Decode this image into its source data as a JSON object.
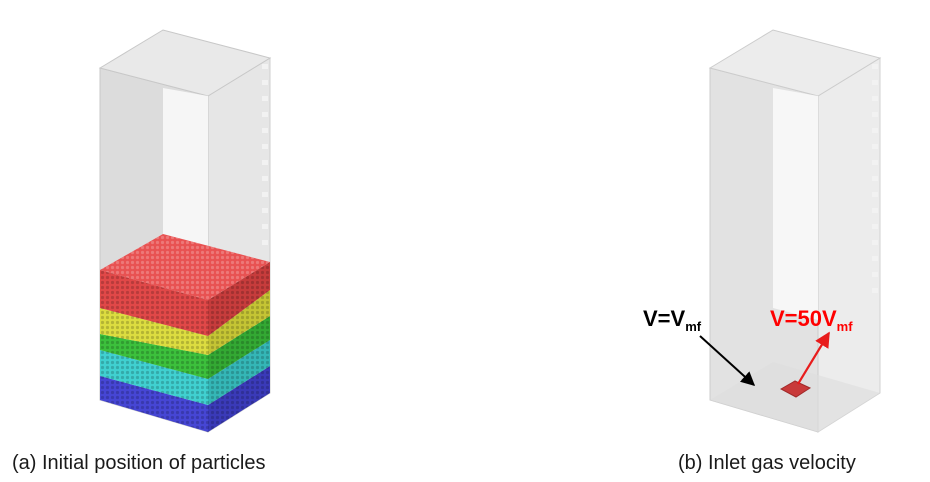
{
  "panel_a": {
    "caption": "(a) Initial position of particles"
  },
  "panel_b": {
    "caption": "(b) Inlet gas velocity",
    "label_background": {
      "main": "V=V",
      "sub": "mf"
    },
    "label_inlet": {
      "main": "V=50V",
      "sub": "mf"
    }
  },
  "colors": {
    "layer_red": "#e04848",
    "layer_yellow": "#dcdc40",
    "layer_green": "#3cc03c",
    "layer_cyan": "#40d0d0",
    "layer_blue": "#4646d4",
    "inlet": "#c83a3a",
    "label_red": "#ff0000",
    "arrow_red": "#e81c1c",
    "arrow_black": "#000000"
  }
}
